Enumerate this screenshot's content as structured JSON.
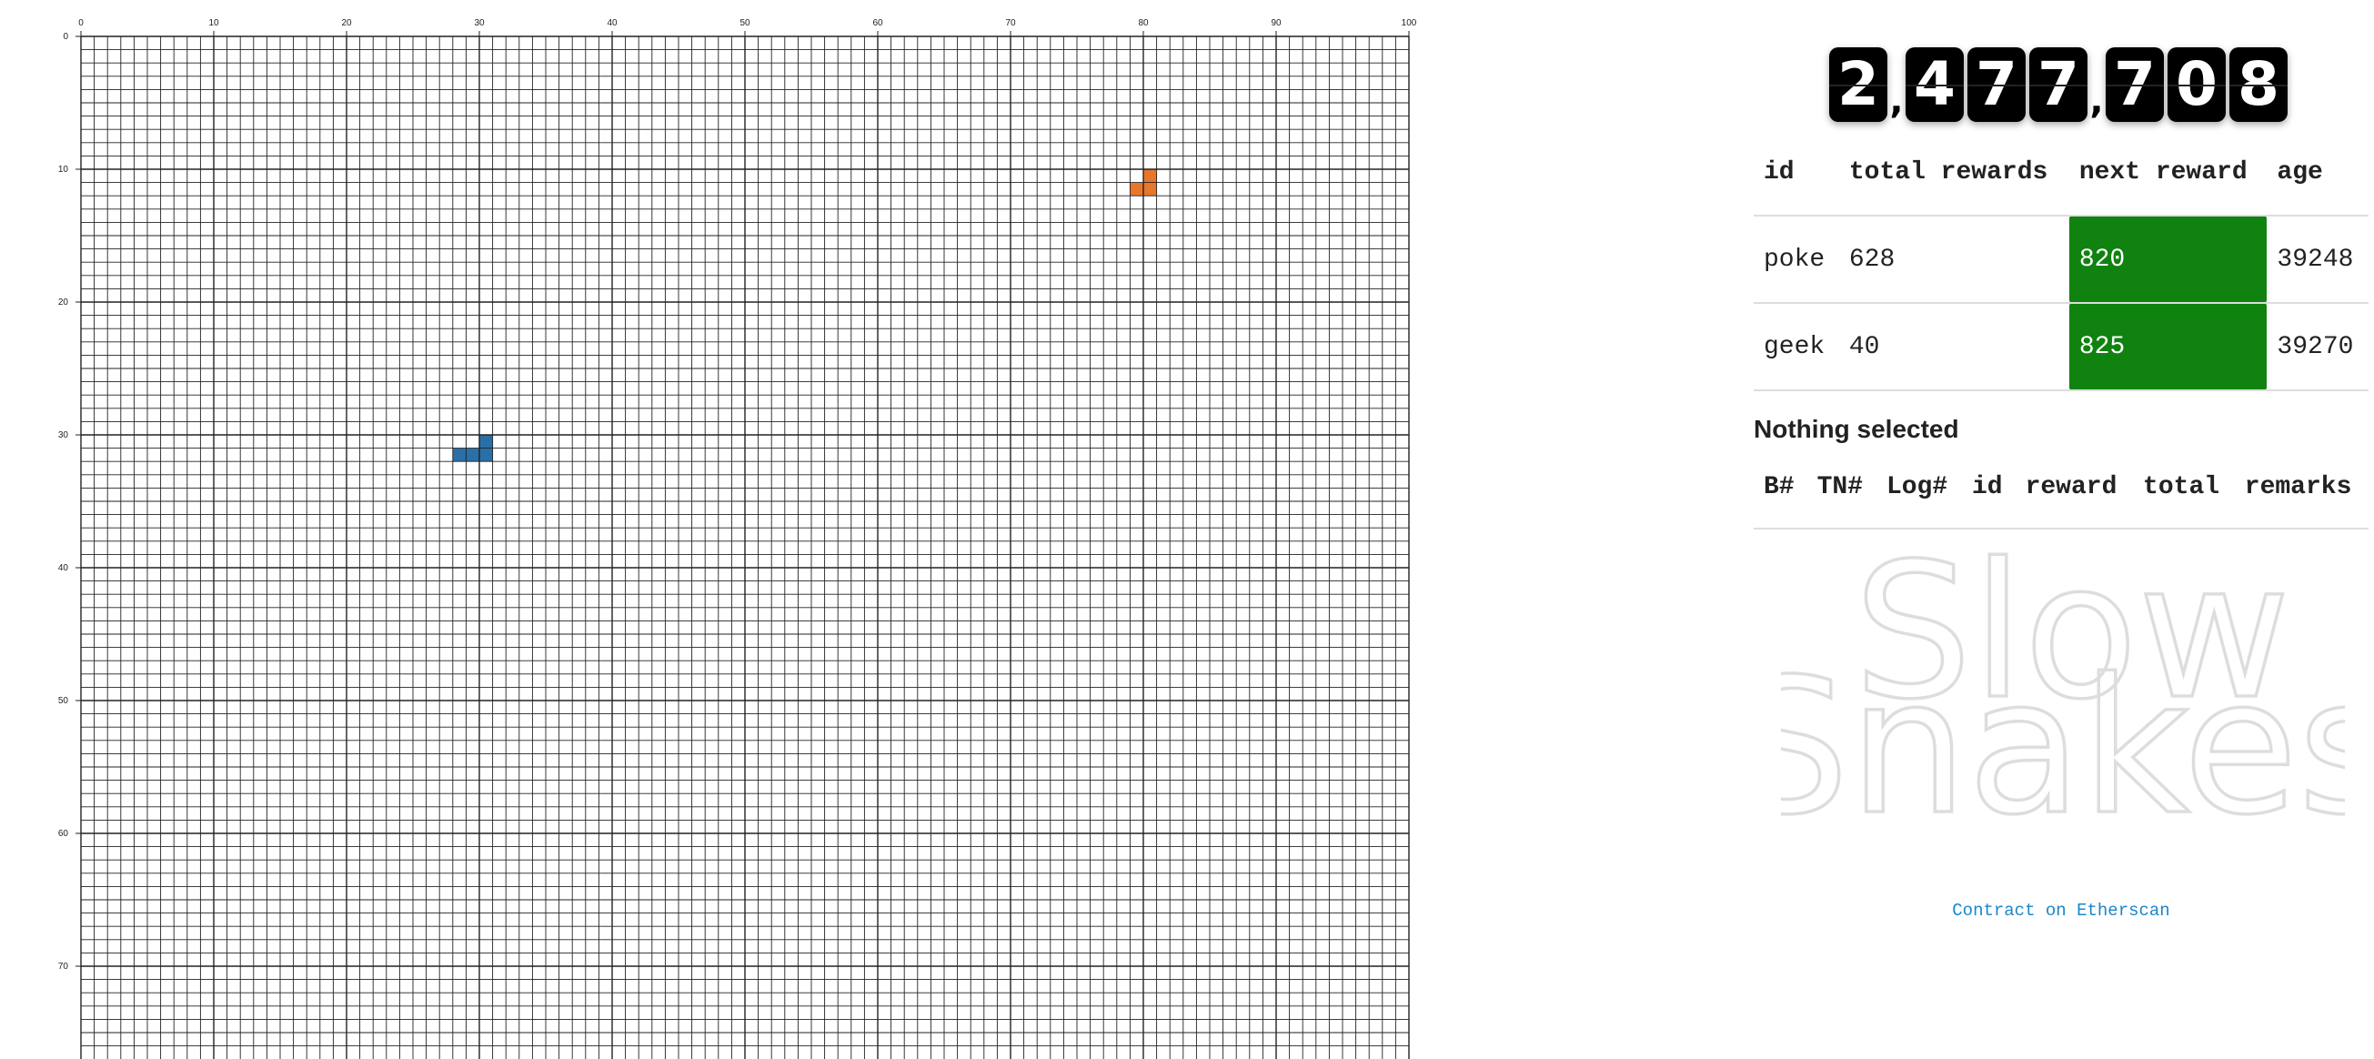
{
  "grid": {
    "columns": 100,
    "visible_rows": 77,
    "x_ticks": [
      "0",
      "10",
      "20",
      "30",
      "40",
      "50",
      "60",
      "70",
      "80",
      "90",
      "100"
    ],
    "y_ticks": [
      "0",
      "10",
      "20",
      "30",
      "40",
      "50",
      "60",
      "70"
    ],
    "line_color": "#222222",
    "snakes": [
      {
        "id": "snake-blue",
        "color": "#2b6fa8",
        "cells": [
          [
            28,
            31
          ],
          [
            29,
            31
          ],
          [
            30,
            31
          ],
          [
            30,
            30
          ]
        ]
      },
      {
        "id": "snake-orange",
        "color": "#e8772b",
        "cells": [
          [
            79,
            11
          ],
          [
            80,
            11
          ],
          [
            80,
            10
          ]
        ]
      }
    ]
  },
  "counter": {
    "value": "2,477,708",
    "groups": [
      [
        "2"
      ],
      [
        "4",
        "7",
        "7"
      ],
      [
        "7",
        "0",
        "8"
      ]
    ]
  },
  "rewards_table": {
    "headers": [
      "id",
      "total rewards",
      "next reward",
      "age"
    ],
    "rows": [
      {
        "id": "poke",
        "total_rewards": "628",
        "next_reward": "820",
        "age": "39248"
      },
      {
        "id": "geek",
        "total_rewards": "40",
        "next_reward": "825",
        "age": "39270"
      }
    ],
    "highlight_color": "#10820f"
  },
  "selection": {
    "title": "Nothing selected"
  },
  "log_table": {
    "headers": [
      "B#",
      "TN#",
      "Log#",
      "id",
      "reward",
      "total",
      "remarks"
    ]
  },
  "logo": {
    "line1": "Slow",
    "line2": "Snakes",
    "outline_color": "#dddddd"
  },
  "footer": {
    "link_label": "Contract on Etherscan",
    "link_color": "#1b87c9"
  }
}
